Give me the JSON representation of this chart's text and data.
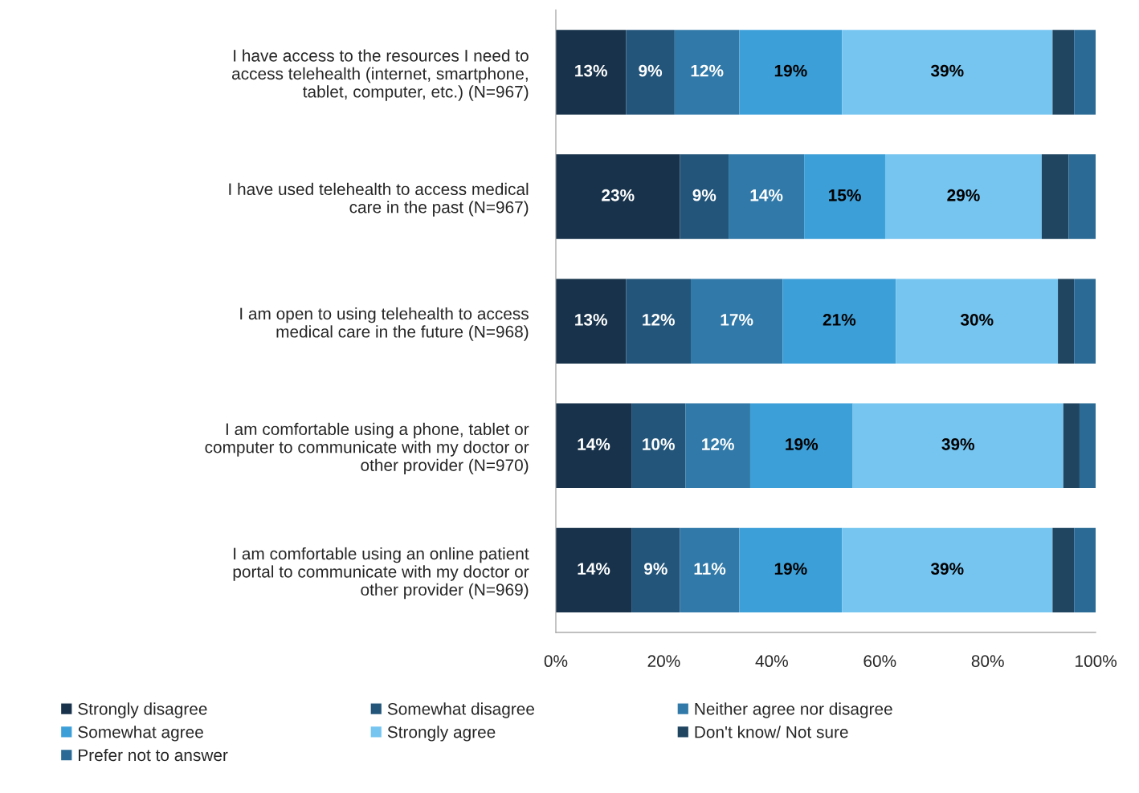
{
  "chart_data": {
    "type": "bar",
    "orientation": "horizontal",
    "stacked": true,
    "categories": [
      "I have access to the resources I need to access telehealth (internet, smartphone, tablet, computer, etc.) (N=967)",
      "I have used telehealth to access medical care in the past (N=967)",
      "I am open to using telehealth to access medical care in the future (N=968)",
      "I am comfortable using a phone, tablet or computer to communicate with my doctor or other provider (N=970)",
      "I am comfortable using an online patient portal to communicate with my doctor or other provider (N=969)"
    ],
    "series": [
      {
        "name": "Strongly disagree",
        "color": "#17324a",
        "values": [
          13,
          23,
          13,
          14,
          14
        ],
        "value_labels": [
          "13%",
          "23%",
          "13%",
          "14%",
          "14%"
        ]
      },
      {
        "name": "Somewhat disagree",
        "color": "#23557a",
        "values": [
          9,
          9,
          12,
          10,
          9
        ],
        "value_labels": [
          "9%",
          "9%",
          "12%",
          "10%",
          "9%"
        ]
      },
      {
        "name": "Neither agree nor disagree",
        "color": "#3079a8",
        "values": [
          12,
          14,
          17,
          12,
          11
        ],
        "value_labels": [
          "12%",
          "14%",
          "17%",
          "12%",
          "11%"
        ]
      },
      {
        "name": "Somewhat agree",
        "color": "#3d9fd8",
        "values": [
          19,
          15,
          21,
          19,
          19
        ],
        "value_labels": [
          "19%",
          "15%",
          "21%",
          "19%",
          "19%"
        ]
      },
      {
        "name": "Strongly agree",
        "color": "#76c5f0",
        "values": [
          39,
          29,
          30,
          39,
          39
        ],
        "value_labels": [
          "39%",
          "29%",
          "30%",
          "39%",
          "39%"
        ]
      },
      {
        "name": "Don't know/ Not sure",
        "color": "#1f4560",
        "values": [
          4,
          5,
          3,
          3,
          4
        ]
      },
      {
        "name": "Prefer not to answer",
        "color": "#2a6a94",
        "values": [
          4,
          5,
          4,
          3,
          4
        ]
      }
    ],
    "xlim": [
      0,
      100
    ],
    "xticks": [
      {
        "value": 0,
        "label": "0%"
      },
      {
        "value": 20,
        "label": "20%"
      },
      {
        "value": 40,
        "label": "40%"
      },
      {
        "value": 60,
        "label": "60%"
      },
      {
        "value": 80,
        "label": "80%"
      },
      {
        "value": 100,
        "label": "100%"
      }
    ],
    "legend": "bottom",
    "grid": false
  }
}
